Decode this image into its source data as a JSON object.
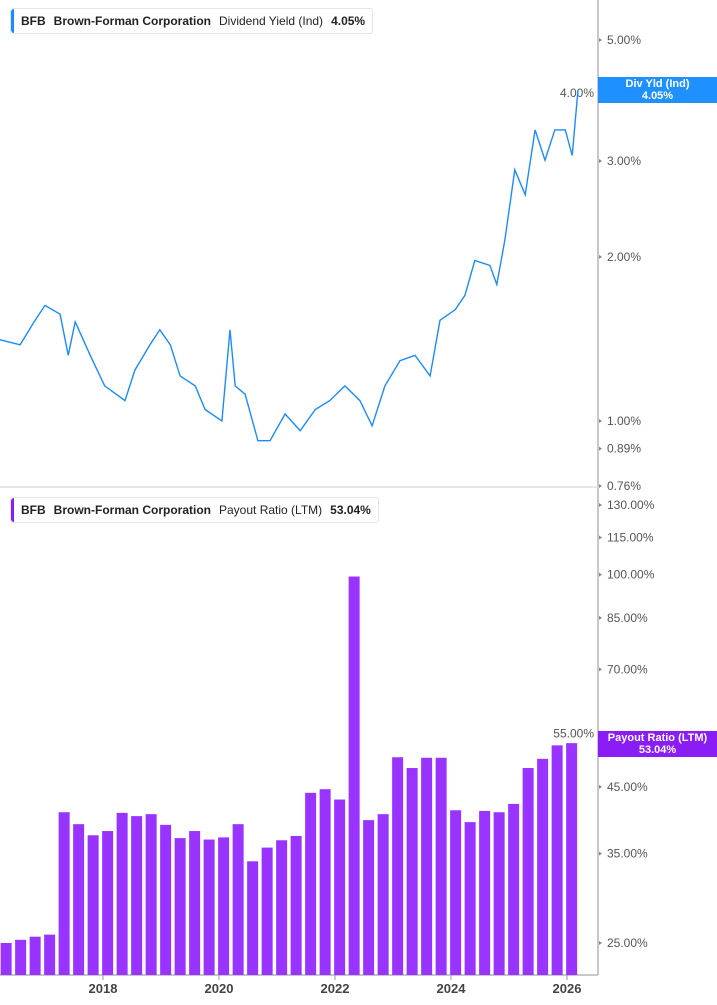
{
  "colors": {
    "yield_line": "#1a8cff",
    "payout_bar": "#9933ff",
    "yield_tag": "#1e90ff",
    "payout_tag": "#8a1cf5"
  },
  "top_legend": {
    "ticker": "BFB",
    "company": "Brown-Forman Corporation",
    "metric": "Dividend Yield (Ind)",
    "value": "4.05%"
  },
  "bottom_legend": {
    "ticker": "BFB",
    "company": "Brown-Forman Corporation",
    "metric": "Payout Ratio (LTM)",
    "value": "53.04%"
  },
  "top_tag": {
    "label": "Div Yld (Ind)",
    "value": "4.05%"
  },
  "bottom_tag": {
    "label": "Payout Ratio (LTM)",
    "value": "53.04%"
  },
  "chart_data": [
    {
      "type": "line",
      "series": [
        {
          "name": "Dividend Yield (Ind)",
          "unit": "%"
        }
      ],
      "y_scale": "log",
      "ylim": [
        0.76,
        5.8
      ],
      "y_ticks": [
        "5.00%",
        "4.00%",
        "3.00%",
        "2.00%",
        "1.00%",
        "0.89%",
        "0.76%"
      ],
      "x": [
        2016.22,
        2016.57,
        2016.83,
        2017.0,
        2017.26,
        2017.4,
        2017.52,
        2017.78,
        2018.03,
        2018.38,
        2018.55,
        2018.81,
        2018.98,
        2019.16,
        2019.33,
        2019.59,
        2019.76,
        2020.05,
        2020.19,
        2020.28,
        2020.45,
        2020.67,
        2020.88,
        2021.14,
        2021.4,
        2021.66,
        2021.91,
        2022.17,
        2022.43,
        2022.64,
        2022.86,
        2023.12,
        2023.38,
        2023.64,
        2023.81,
        2024.07,
        2024.24,
        2024.41,
        2024.67,
        2024.79,
        2024.93,
        2025.1,
        2025.28,
        2025.45,
        2025.62,
        2025.79,
        2025.97,
        2026.09,
        2026.19
      ],
      "values": [
        1.41,
        1.38,
        1.53,
        1.63,
        1.57,
        1.32,
        1.52,
        1.32,
        1.16,
        1.09,
        1.24,
        1.38,
        1.47,
        1.38,
        1.21,
        1.16,
        1.05,
        1.0,
        1.47,
        1.16,
        1.12,
        0.92,
        0.92,
        1.03,
        0.96,
        1.05,
        1.09,
        1.16,
        1.09,
        0.98,
        1.16,
        1.29,
        1.32,
        1.21,
        1.53,
        1.6,
        1.7,
        1.97,
        1.93,
        1.78,
        2.15,
        2.89,
        2.6,
        3.42,
        3.01,
        3.42,
        3.42,
        3.07,
        4.05
      ]
    },
    {
      "type": "bar",
      "series": [
        {
          "name": "Payout Ratio (LTM)",
          "unit": "%"
        }
      ],
      "y_scale": "log",
      "ylim": [
        22.4,
        133
      ],
      "y_ticks": [
        "130.00%",
        "115.00%",
        "100.00%",
        "85.00%",
        "70.00%",
        "55.00%",
        "45.00%",
        "35.00%",
        "25.00%"
      ],
      "x_ticks": [
        "2018",
        "2020",
        "2022",
        "2024",
        "2026"
      ],
      "x": [
        2016.33,
        2016.58,
        2016.83,
        2017.08,
        2017.33,
        2017.58,
        2017.83,
        2018.08,
        2018.33,
        2018.58,
        2018.83,
        2019.08,
        2019.33,
        2019.58,
        2019.83,
        2020.08,
        2020.33,
        2020.58,
        2020.83,
        2021.08,
        2021.33,
        2021.58,
        2021.83,
        2022.08,
        2022.33,
        2022.58,
        2022.83,
        2023.08,
        2023.33,
        2023.58,
        2023.83,
        2024.08,
        2024.33,
        2024.58,
        2024.83,
        2025.08,
        2025.33,
        2025.58,
        2025.83,
        2026.08
      ],
      "values": [
        25.0,
        25.3,
        25.6,
        25.8,
        40.9,
        39.1,
        37.5,
        38.1,
        40.8,
        40.3,
        40.6,
        39.0,
        37.1,
        38.1,
        36.9,
        37.2,
        39.1,
        34.0,
        35.8,
        36.8,
        37.4,
        44.0,
        44.6,
        42.9,
        99.3,
        39.7,
        40.6,
        50.3,
        48.3,
        50.2,
        50.2,
        41.2,
        39.4,
        41.1,
        40.9,
        42.2,
        48.3,
        50.0,
        52.6,
        53.04
      ]
    }
  ]
}
